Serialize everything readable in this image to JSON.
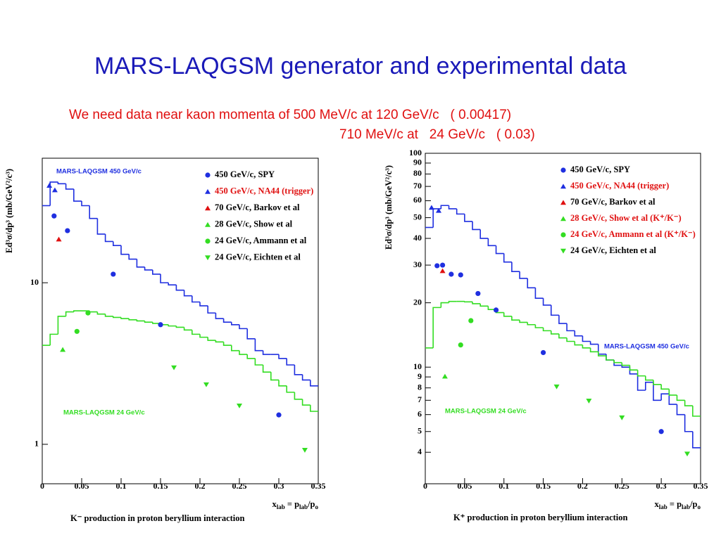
{
  "header": {
    "title": "MARS-LAQGSM generator  and experimental data",
    "note": [
      "We need data near kaon momenta of 500 MeV/c at 120 GeV/c   ( 0.00417)",
      "710 MeV/c at   24 GeV/c   ( 0.03)"
    ]
  },
  "chart_data": [
    {
      "type": "scatter",
      "log_y": true,
      "ylabel": "Ed³σ/dp³  (mb/GeV²/c³)",
      "xlabel": [
        "x",
        "lab",
        " = p",
        "lab",
        "/p",
        "o"
      ],
      "caption": "K⁻ production in proton beryllium interaction",
      "xlim": [
        0,
        0.35
      ],
      "xticks": [
        0,
        0.05,
        0.1,
        0.15,
        0.2,
        0.25,
        0.3,
        0.35
      ],
      "ylim": [
        0.57,
        59
      ],
      "yticks": [
        1,
        10
      ],
      "series": [
        {
          "name": "MARS-LAQGSM 450 GeV/c",
          "kind": "histogram",
          "color": "#1f2fe0",
          "bins": [
            0,
            0.01,
            0.02,
            0.03,
            0.04,
            0.05,
            0.06,
            0.07,
            0.08,
            0.09,
            0.1,
            0.11,
            0.12,
            0.13,
            0.14,
            0.15,
            0.16,
            0.17,
            0.18,
            0.19,
            0.2,
            0.21,
            0.22,
            0.23,
            0.24,
            0.25,
            0.26,
            0.27,
            0.28,
            0.29,
            0.3,
            0.31,
            0.32,
            0.33,
            0.34,
            0.35
          ],
          "values": [
            30,
            42,
            41,
            38,
            32,
            30,
            25,
            20,
            18,
            17,
            15,
            14,
            12.5,
            12,
            11.3,
            10,
            9.7,
            9,
            8.3,
            7.6,
            7.2,
            6.5,
            6,
            5.7,
            5.5,
            5.2,
            4.5,
            3.8,
            3.6,
            3.6,
            3.4,
            3.1,
            2.7,
            2.5,
            2.3
          ]
        },
        {
          "name": "MARS-LAQGSM 24 GeV/c",
          "kind": "histogram",
          "color": "#33dd22",
          "bins": [
            0,
            0.01,
            0.02,
            0.03,
            0.04,
            0.05,
            0.06,
            0.07,
            0.08,
            0.09,
            0.1,
            0.11,
            0.12,
            0.13,
            0.14,
            0.15,
            0.16,
            0.17,
            0.18,
            0.19,
            0.2,
            0.21,
            0.22,
            0.23,
            0.24,
            0.25,
            0.26,
            0.27,
            0.28,
            0.29,
            0.3,
            0.31,
            0.32,
            0.33,
            0.34,
            0.35
          ],
          "values": [
            4.1,
            4.8,
            6.2,
            6.6,
            6.7,
            6.7,
            6.6,
            6.4,
            6.2,
            6.1,
            6,
            5.9,
            5.8,
            5.7,
            5.6,
            5.5,
            5.4,
            5.3,
            5.1,
            4.8,
            4.6,
            4.4,
            4.3,
            4.1,
            3.8,
            3.6,
            3.4,
            3.1,
            2.8,
            2.5,
            2.3,
            2.1,
            1.9,
            1.75,
            1.6
          ]
        },
        {
          "name": "450 GeV/c, SPY",
          "marker": "circle",
          "color": "#1f2fe0",
          "label_color": "#000000",
          "x": [
            0.015,
            0.032,
            0.09,
            0.15,
            0.3
          ],
          "values": [
            25.9,
            21,
            11.3,
            5.5,
            1.52
          ]
        },
        {
          "name": "450 GeV/c, NA44 (trigger)",
          "marker": "triangle-up",
          "color": "#1f2fe0",
          "label_color": "#e01010",
          "x": [
            0.009,
            0.016
          ],
          "values": [
            40,
            37.5
          ]
        },
        {
          "name": "70 GeV/c, Barkov et al",
          "marker": "triangle-up",
          "color": "#e01010",
          "label_color": "#000000",
          "x": [
            0.021
          ],
          "values": [
            18.6
          ]
        },
        {
          "name": "28 GeV/c, Show et al",
          "marker": "triangle-up",
          "color": "#33dd22",
          "label_color": "#000000",
          "x": [
            0.026
          ],
          "values": [
            3.86
          ]
        },
        {
          "name": "24 GeV/c, Ammann et al",
          "marker": "circle",
          "color": "#33dd22",
          "label_color": "#000000",
          "x": [
            0.044,
            0.058
          ],
          "values": [
            5,
            6.5
          ]
        },
        {
          "name": "24 GeV/c, Eichten et al",
          "marker": "triangle-down",
          "color": "#33dd22",
          "label_color": "#000000",
          "x": [
            0.167,
            0.208,
            0.25,
            0.333
          ],
          "values": [
            2.98,
            2.34,
            1.73,
            0.92
          ]
        }
      ]
    },
    {
      "type": "scatter",
      "log_y": true,
      "ylabel": "Ed³σ/dp³  (mb/GeV²/c³)",
      "xlabel": [
        "x",
        "lab",
        " = p",
        "lab",
        "/p",
        "o"
      ],
      "caption": "K⁺ production in proton beryllium interaction",
      "xlim": [
        0,
        0.35
      ],
      "xticks": [
        0,
        0.05,
        0.1,
        0.15,
        0.2,
        0.25,
        0.3,
        0.35
      ],
      "ylim": [
        2.85,
        100
      ],
      "yticks": [
        4,
        5,
        6,
        7,
        8,
        9,
        10,
        20,
        30,
        40,
        50,
        60,
        70,
        80,
        90,
        100
      ],
      "series": [
        {
          "name": "MARS-LAQGSM 450 GeV/c",
          "kind": "histogram",
          "color": "#1f2fe0",
          "bins": [
            0,
            0.01,
            0.02,
            0.03,
            0.04,
            0.05,
            0.06,
            0.07,
            0.08,
            0.09,
            0.1,
            0.11,
            0.12,
            0.13,
            0.14,
            0.15,
            0.16,
            0.17,
            0.18,
            0.19,
            0.2,
            0.21,
            0.22,
            0.23,
            0.24,
            0.25,
            0.26,
            0.27,
            0.28,
            0.29,
            0.3,
            0.31,
            0.32,
            0.33,
            0.34,
            0.35
          ],
          "values": [
            45,
            55,
            57,
            55,
            52,
            48,
            44,
            40,
            37,
            34,
            31,
            28,
            26,
            23.5,
            21,
            19.5,
            17.5,
            16,
            14.8,
            14,
            13.2,
            12.8,
            11.5,
            10.8,
            10.2,
            10,
            9.3,
            7.8,
            8.5,
            7,
            7.5,
            6.7,
            6,
            5,
            4.2
          ]
        },
        {
          "name": "MARS-LAQGSM 24 GeV/c",
          "kind": "histogram",
          "color": "#33dd22",
          "bins": [
            0,
            0.01,
            0.02,
            0.03,
            0.04,
            0.05,
            0.06,
            0.07,
            0.08,
            0.09,
            0.1,
            0.11,
            0.12,
            0.13,
            0.14,
            0.15,
            0.16,
            0.17,
            0.18,
            0.19,
            0.2,
            0.21,
            0.22,
            0.23,
            0.24,
            0.25,
            0.26,
            0.27,
            0.28,
            0.29,
            0.3,
            0.31,
            0.32,
            0.33,
            0.34,
            0.35
          ],
          "values": [
            12.3,
            19,
            20,
            20.3,
            20.3,
            20.2,
            19.8,
            19.3,
            18.6,
            18,
            17.3,
            16.6,
            16.2,
            15.8,
            15.3,
            14.8,
            14.3,
            13.7,
            13.2,
            12.7,
            12.3,
            11.8,
            11.3,
            10.8,
            10.5,
            10.2,
            9.7,
            9.1,
            8.7,
            8.3,
            7.9,
            7.4,
            7,
            6.6,
            5.9
          ]
        },
        {
          "name": "450 GeV/c, SPY",
          "marker": "circle",
          "color": "#1f2fe0",
          "label_color": "#000000",
          "x": [
            0.015,
            0.022,
            0.033,
            0.045,
            0.067,
            0.09,
            0.15,
            0.3
          ],
          "values": [
            29.8,
            30,
            27.2,
            27,
            22.1,
            18.5,
            11.7,
            5
          ]
        },
        {
          "name": "450 GeV/c, NA44 (trigger)",
          "marker": "triangle-up",
          "color": "#1f2fe0",
          "label_color": "#e01010",
          "x": [
            0.008,
            0.017
          ],
          "values": [
            55.8,
            54
          ]
        },
        {
          "name": "70 GeV/c, Barkov et al",
          "marker": "triangle-up",
          "color": "#e01010",
          "label_color": "#000000",
          "x": [
            0.022
          ],
          "values": [
            28.2
          ]
        },
        {
          "name": "28 GeV/c, Show et al (K⁺/K⁻)",
          "marker": "triangle-up",
          "color": "#33dd22",
          "label_color": "#e01010",
          "x": [
            0.025
          ],
          "values": [
            9.06
          ]
        },
        {
          "name": "24 GeV/c, Ammann et al (K⁺/K⁻)",
          "marker": "circle",
          "color": "#33dd22",
          "label_color": "#e01010",
          "x": [
            0.045,
            0.058
          ],
          "values": [
            12.7,
            16.5
          ]
        },
        {
          "name": "24 GeV/c, Eichten et al",
          "marker": "triangle-down",
          "color": "#33dd22",
          "label_color": "#000000",
          "x": [
            0.167,
            0.208,
            0.25,
            0.333
          ],
          "values": [
            8.1,
            6.95,
            5.8,
            3.93
          ]
        }
      ]
    }
  ]
}
